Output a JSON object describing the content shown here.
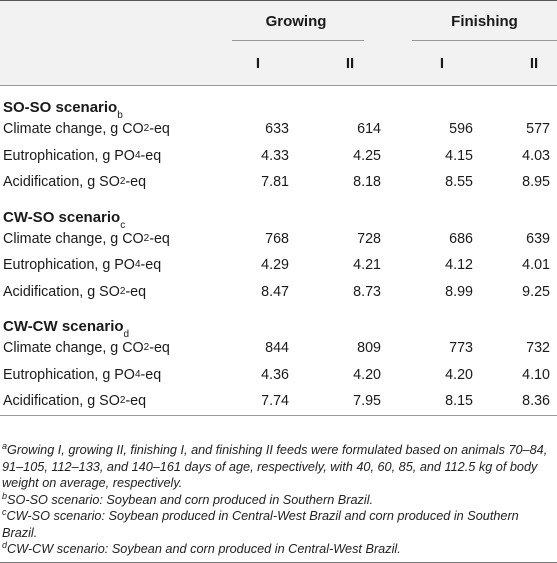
{
  "header": {
    "group_labels": [
      "Growing",
      "Finishing"
    ],
    "sub_labels": [
      "I",
      "II",
      "I",
      "II"
    ]
  },
  "sections": [
    {
      "title": "SO-SO scenario",
      "title_sup": "b",
      "rows": [
        {
          "label_pre": "Climate change, g CO",
          "label_sub": "2",
          "label_post": "-eq",
          "values": [
            "633",
            "614",
            "596",
            "577"
          ]
        },
        {
          "label_pre": "Eutrophication, g PO",
          "label_sub": "4",
          "label_post": "-eq",
          "values": [
            "4.33",
            "4.25",
            "4.15",
            "4.03"
          ]
        },
        {
          "label_pre": "Acidification, g SO",
          "label_sub": "2",
          "label_post": "-eq",
          "values": [
            "7.81",
            "8.18",
            "8.55",
            "8.95"
          ]
        }
      ]
    },
    {
      "title": "CW-SO scenario",
      "title_sup": "c",
      "rows": [
        {
          "label_pre": "Climate change, g CO",
          "label_sub": "2",
          "label_post": "-eq",
          "values": [
            "768",
            "728",
            "686",
            "639"
          ]
        },
        {
          "label_pre": "Eutrophication, g PO",
          "label_sub": "4",
          "label_post": "-eq",
          "values": [
            "4.29",
            "4.21",
            "4.12",
            "4.01"
          ]
        },
        {
          "label_pre": "Acidification, g SO",
          "label_sub": "2",
          "label_post": "-eq",
          "values": [
            "8.47",
            "8.73",
            "8.99",
            "9.25"
          ]
        }
      ]
    },
    {
      "title": "CW-CW scenario",
      "title_sup": "d",
      "rows": [
        {
          "label_pre": "Climate change, g CO",
          "label_sub": "2",
          "label_post": "-eq",
          "values": [
            "844",
            "809",
            "773",
            "732"
          ]
        },
        {
          "label_pre": "Eutrophication, g PO",
          "label_sub": "4",
          "label_post": "-eq",
          "values": [
            "4.36",
            "4.20",
            "4.20",
            "4.10"
          ]
        },
        {
          "label_pre": "Acidification, g SO",
          "label_sub": "2",
          "label_post": "-eq",
          "values": [
            "7.74",
            "7.95",
            "8.15",
            "8.36"
          ]
        }
      ]
    }
  ],
  "footnotes": [
    {
      "marker": "a",
      "text": "Growing I, growing II, finishing I, and finishing II feeds were formulated based on animals 70–84, 91–105, 112–133, and 140–161 days of age, respectively, with 40, 60, 85, and 112.5 kg of body weight on average, respectively."
    },
    {
      "marker": "b",
      "text": "SO-SO scenario: Soybean and corn produced in Southern Brazil."
    },
    {
      "marker": "c",
      "text": "CW-SO scenario: Soybean produced in Central-West Brazil and corn produced in Southern Brazil."
    },
    {
      "marker": "d",
      "text": "CW-CW scenario: Soybean and corn produced in Central-West Brazil."
    }
  ]
}
